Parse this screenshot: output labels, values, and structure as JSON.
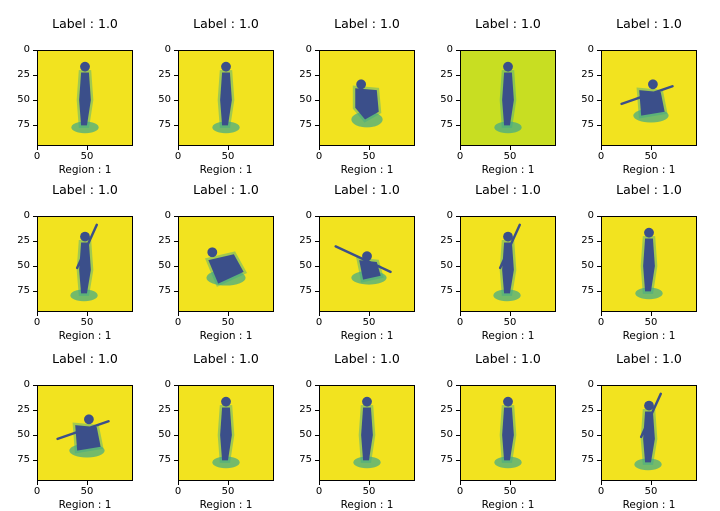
{
  "colors": {
    "background_yellow": "#f2e31f",
    "background_lime": "#c8de22",
    "figure_dark": "#3b4f8a",
    "shadow_teal": "#3fa88a"
  },
  "x_ticks": [
    "0",
    "50"
  ],
  "y_ticks": [
    "0",
    "25",
    "50",
    "75"
  ],
  "panels": [
    {
      "title": "Label : 1.0",
      "xlabel": "Region : 1",
      "background": "#f2e31f",
      "pose": "standing"
    },
    {
      "title": "Label : 1.0",
      "xlabel": "Region : 1",
      "background": "#f2e31f",
      "pose": "standing"
    },
    {
      "title": "Label : 1.0",
      "xlabel": "Region : 1",
      "background": "#f2e31f",
      "pose": "crouching"
    },
    {
      "title": "Label : 1.0",
      "xlabel": "Region : 1",
      "background": "#c8de22",
      "pose": "standing"
    },
    {
      "title": "Label : 1.0",
      "xlabel": "Region : 1",
      "background": "#f2e31f",
      "pose": "kneeling-rifle"
    },
    {
      "title": "Label : 1.0",
      "xlabel": "Region : 1",
      "background": "#f2e31f",
      "pose": "standing-rifle"
    },
    {
      "title": "Label : 1.0",
      "xlabel": "Region : 1",
      "background": "#f2e31f",
      "pose": "prone"
    },
    {
      "title": "Label : 1.0",
      "xlabel": "Region : 1",
      "background": "#f2e31f",
      "pose": "bazooka"
    },
    {
      "title": "Label : 1.0",
      "xlabel": "Region : 1",
      "background": "#f2e31f",
      "pose": "standing-rifle"
    },
    {
      "title": "Label : 1.0",
      "xlabel": "Region : 1",
      "background": "#f2e31f",
      "pose": "standing"
    },
    {
      "title": "Label : 1.0",
      "xlabel": "Region : 1",
      "background": "#f2e31f",
      "pose": "kneeling-rifle"
    },
    {
      "title": "Label : 1.0",
      "xlabel": "Region : 1",
      "background": "#f2e31f",
      "pose": "standing"
    },
    {
      "title": "Label : 1.0",
      "xlabel": "Region : 1",
      "background": "#f2e31f",
      "pose": "standing"
    },
    {
      "title": "Label : 1.0",
      "xlabel": "Region : 1",
      "background": "#f2e31f",
      "pose": "standing"
    },
    {
      "title": "Label : 1.0",
      "xlabel": "Region : 1",
      "background": "#f2e31f",
      "pose": "standing-rifle"
    }
  ]
}
